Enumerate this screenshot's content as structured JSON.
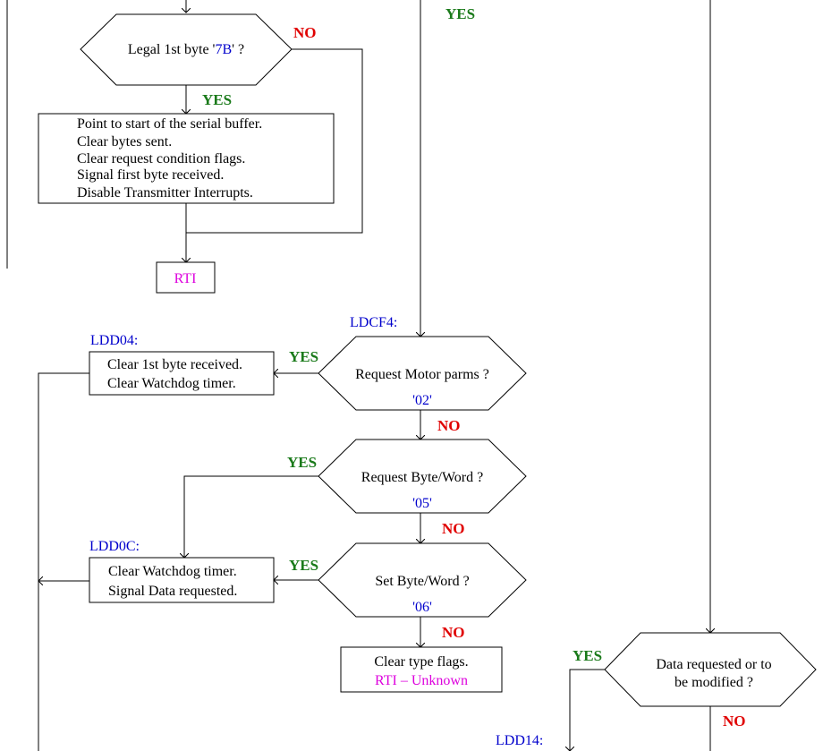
{
  "yes_label": "YES",
  "no_label": "NO",
  "decisions": {
    "legal_first_byte": {
      "text_pre": "Legal 1st byte '",
      "code": "7B",
      "text_post": "' ?"
    },
    "request_motor_parms": {
      "text": "Request Motor parms ?",
      "code": "'02'"
    },
    "request_byte_word": {
      "text": "Request Byte/Word ?",
      "code": "'05'"
    },
    "set_byte_word": {
      "text": "Set Byte/Word ?",
      "code": "'06'"
    },
    "data_requested": {
      "line1": "Data requested or to",
      "line2": "be modified ?"
    }
  },
  "processes": {
    "init_buffer": {
      "lines": [
        "Point to start of the serial buffer.",
        "Clear bytes sent.",
        "Clear request condition flags.",
        "Signal first byte received.",
        "Disable Transmitter Interrupts."
      ]
    },
    "rti": {
      "text": "RTI"
    },
    "ldd04_box": {
      "lines": [
        "Clear 1st byte received.",
        "Clear Watchdog timer."
      ]
    },
    "ldd0c_box": {
      "lines": [
        "Clear Watchdog timer.",
        "Signal Data requested."
      ]
    },
    "clear_type": {
      "line1": "Clear type flags.",
      "line2": "RTI – Unknown"
    }
  },
  "labels": {
    "ldcf4": "LDCF4:",
    "ldd04": "LDD04:",
    "ldd0c": "LDD0C:",
    "ldd14": "LDD14:"
  },
  "colors": {
    "label_blue": "#0000cc",
    "yes_green": "#1a7a1a",
    "no_red": "#e00000",
    "rti_magenta": "#dd00dd"
  }
}
